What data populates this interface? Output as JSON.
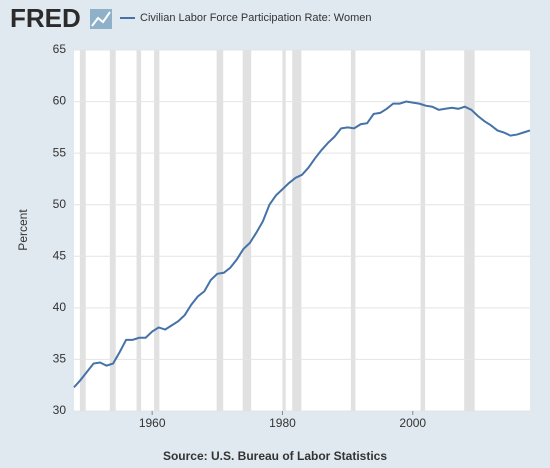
{
  "logo": "FRED",
  "chart_data": {
    "type": "line",
    "y_label": "Percent",
    "source": "Source: U.S. Bureau of Labor Statistics",
    "x": [
      1948,
      1949,
      1950,
      1951,
      1952,
      1953,
      1954,
      1955,
      1956,
      1957,
      1958,
      1959,
      1960,
      1961,
      1962,
      1963,
      1964,
      1965,
      1966,
      1967,
      1968,
      1969,
      1970,
      1971,
      1972,
      1973,
      1974,
      1975,
      1976,
      1977,
      1978,
      1979,
      1980,
      1981,
      1982,
      1983,
      1984,
      1985,
      1986,
      1987,
      1988,
      1989,
      1990,
      1991,
      1992,
      1993,
      1994,
      1995,
      1996,
      1997,
      1998,
      1999,
      2000,
      2001,
      2002,
      2003,
      2004,
      2005,
      2006,
      2007,
      2008,
      2009,
      2010,
      2011,
      2012,
      2013,
      2014,
      2015,
      2016,
      2017,
      2018
    ],
    "series": [
      {
        "name": "Civilian Labor Force Participation Rate: Women",
        "color": "#4572a7",
        "values": [
          32.3,
          33.0,
          33.8,
          34.6,
          34.7,
          34.4,
          34.6,
          35.7,
          36.9,
          36.9,
          37.1,
          37.1,
          37.7,
          38.1,
          37.9,
          38.3,
          38.7,
          39.3,
          40.3,
          41.1,
          41.6,
          42.7,
          43.3,
          43.4,
          43.9,
          44.7,
          45.7,
          46.3,
          47.3,
          48.4,
          50.0,
          50.9,
          51.5,
          52.1,
          52.6,
          52.9,
          53.6,
          54.5,
          55.3,
          56.0,
          56.6,
          57.4,
          57.5,
          57.4,
          57.8,
          57.9,
          58.8,
          58.9,
          59.3,
          59.8,
          59.8,
          60.0,
          59.9,
          59.8,
          59.6,
          59.5,
          59.2,
          59.3,
          59.4,
          59.3,
          59.5,
          59.2,
          58.6,
          58.1,
          57.7,
          57.2,
          57.0,
          56.7,
          56.8,
          57.0,
          57.2
        ]
      }
    ],
    "recessions": [
      [
        1948.9,
        1949.8
      ],
      [
        1953.5,
        1954.4
      ],
      [
        1957.6,
        1958.3
      ],
      [
        1960.3,
        1961.1
      ],
      [
        1969.9,
        1970.9
      ],
      [
        1973.9,
        1975.2
      ],
      [
        1980.0,
        1980.5
      ],
      [
        1981.5,
        1982.9
      ],
      [
        1990.5,
        1991.2
      ],
      [
        2001.2,
        2001.9
      ],
      [
        2007.9,
        2009.5
      ]
    ],
    "recession_color": "#e1e1e1",
    "xlim": [
      1948,
      2018
    ],
    "xticks": [
      1960,
      1980,
      2000
    ],
    "ylim": [
      30,
      65
    ],
    "yticks": [
      30,
      35,
      40,
      45,
      50,
      55,
      60,
      65
    ],
    "grid": true
  }
}
